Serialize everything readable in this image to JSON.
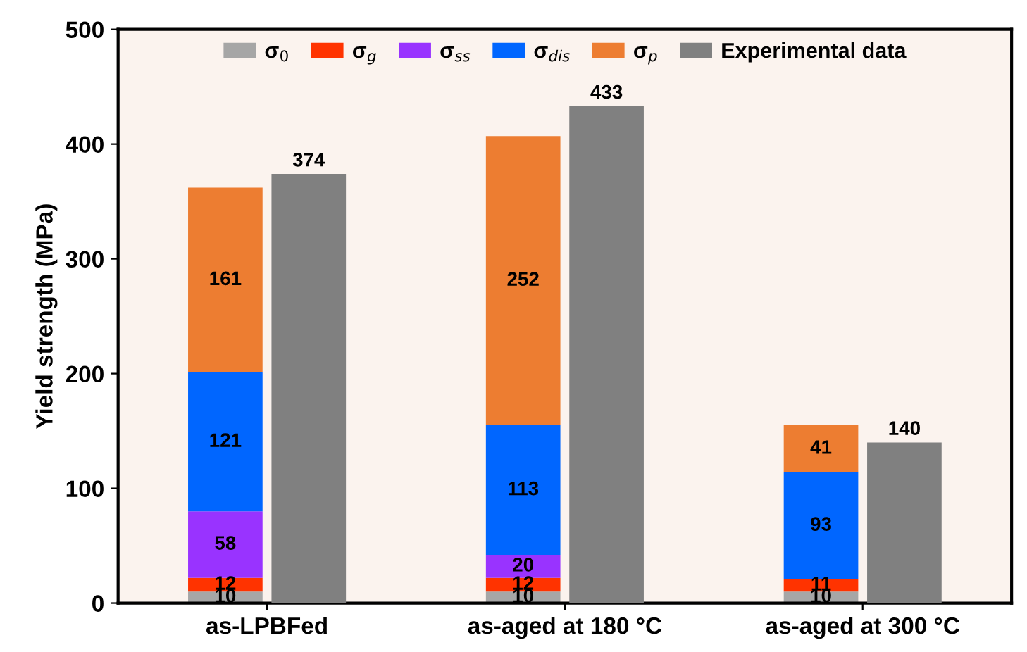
{
  "chart_data": [
    {
      "type": "bar",
      "stacked": true,
      "ylabel": "Yield strength (MPa)",
      "categories": [
        "as-LPBFed",
        "as-aged at 180 °C",
        "as-aged at 300 °C"
      ],
      "series": [
        {
          "name": "σ$_{0}$",
          "color": "#a6a6a6",
          "values": [
            10,
            10,
            10
          ]
        },
        {
          "name": "σ$_{g}$",
          "color": "#ff3300",
          "values": [
            12,
            12,
            11
          ]
        },
        {
          "name": "σ$_{ss}$",
          "color": "#9933ff",
          "values": [
            58,
            20,
            null
          ]
        },
        {
          "name": "σ$_{dis}$",
          "color": "#0066ff",
          "values": [
            121,
            113,
            93
          ]
        },
        {
          "name": "σ$_{p}$",
          "color": "#ed7d31",
          "values": [
            161,
            252,
            41
          ]
        }
      ],
      "data_labels": true,
      "ylim": [
        0,
        500
      ],
      "yticks": [
        0,
        100,
        200,
        300,
        400,
        500
      ],
      "grid": false,
      "legend": "top"
    },
    {
      "type": "bar",
      "categories": [
        null,
        null,
        null
      ],
      "series": [
        {
          "name": "Experimental data",
          "color": "#808080",
          "values": [
            374,
            433,
            140
          ]
        }
      ],
      "data_labels": true,
      "ylim": [
        0,
        500
      ],
      "tick_labels": false,
      "grid": false,
      "legend": "top"
    }
  ]
}
